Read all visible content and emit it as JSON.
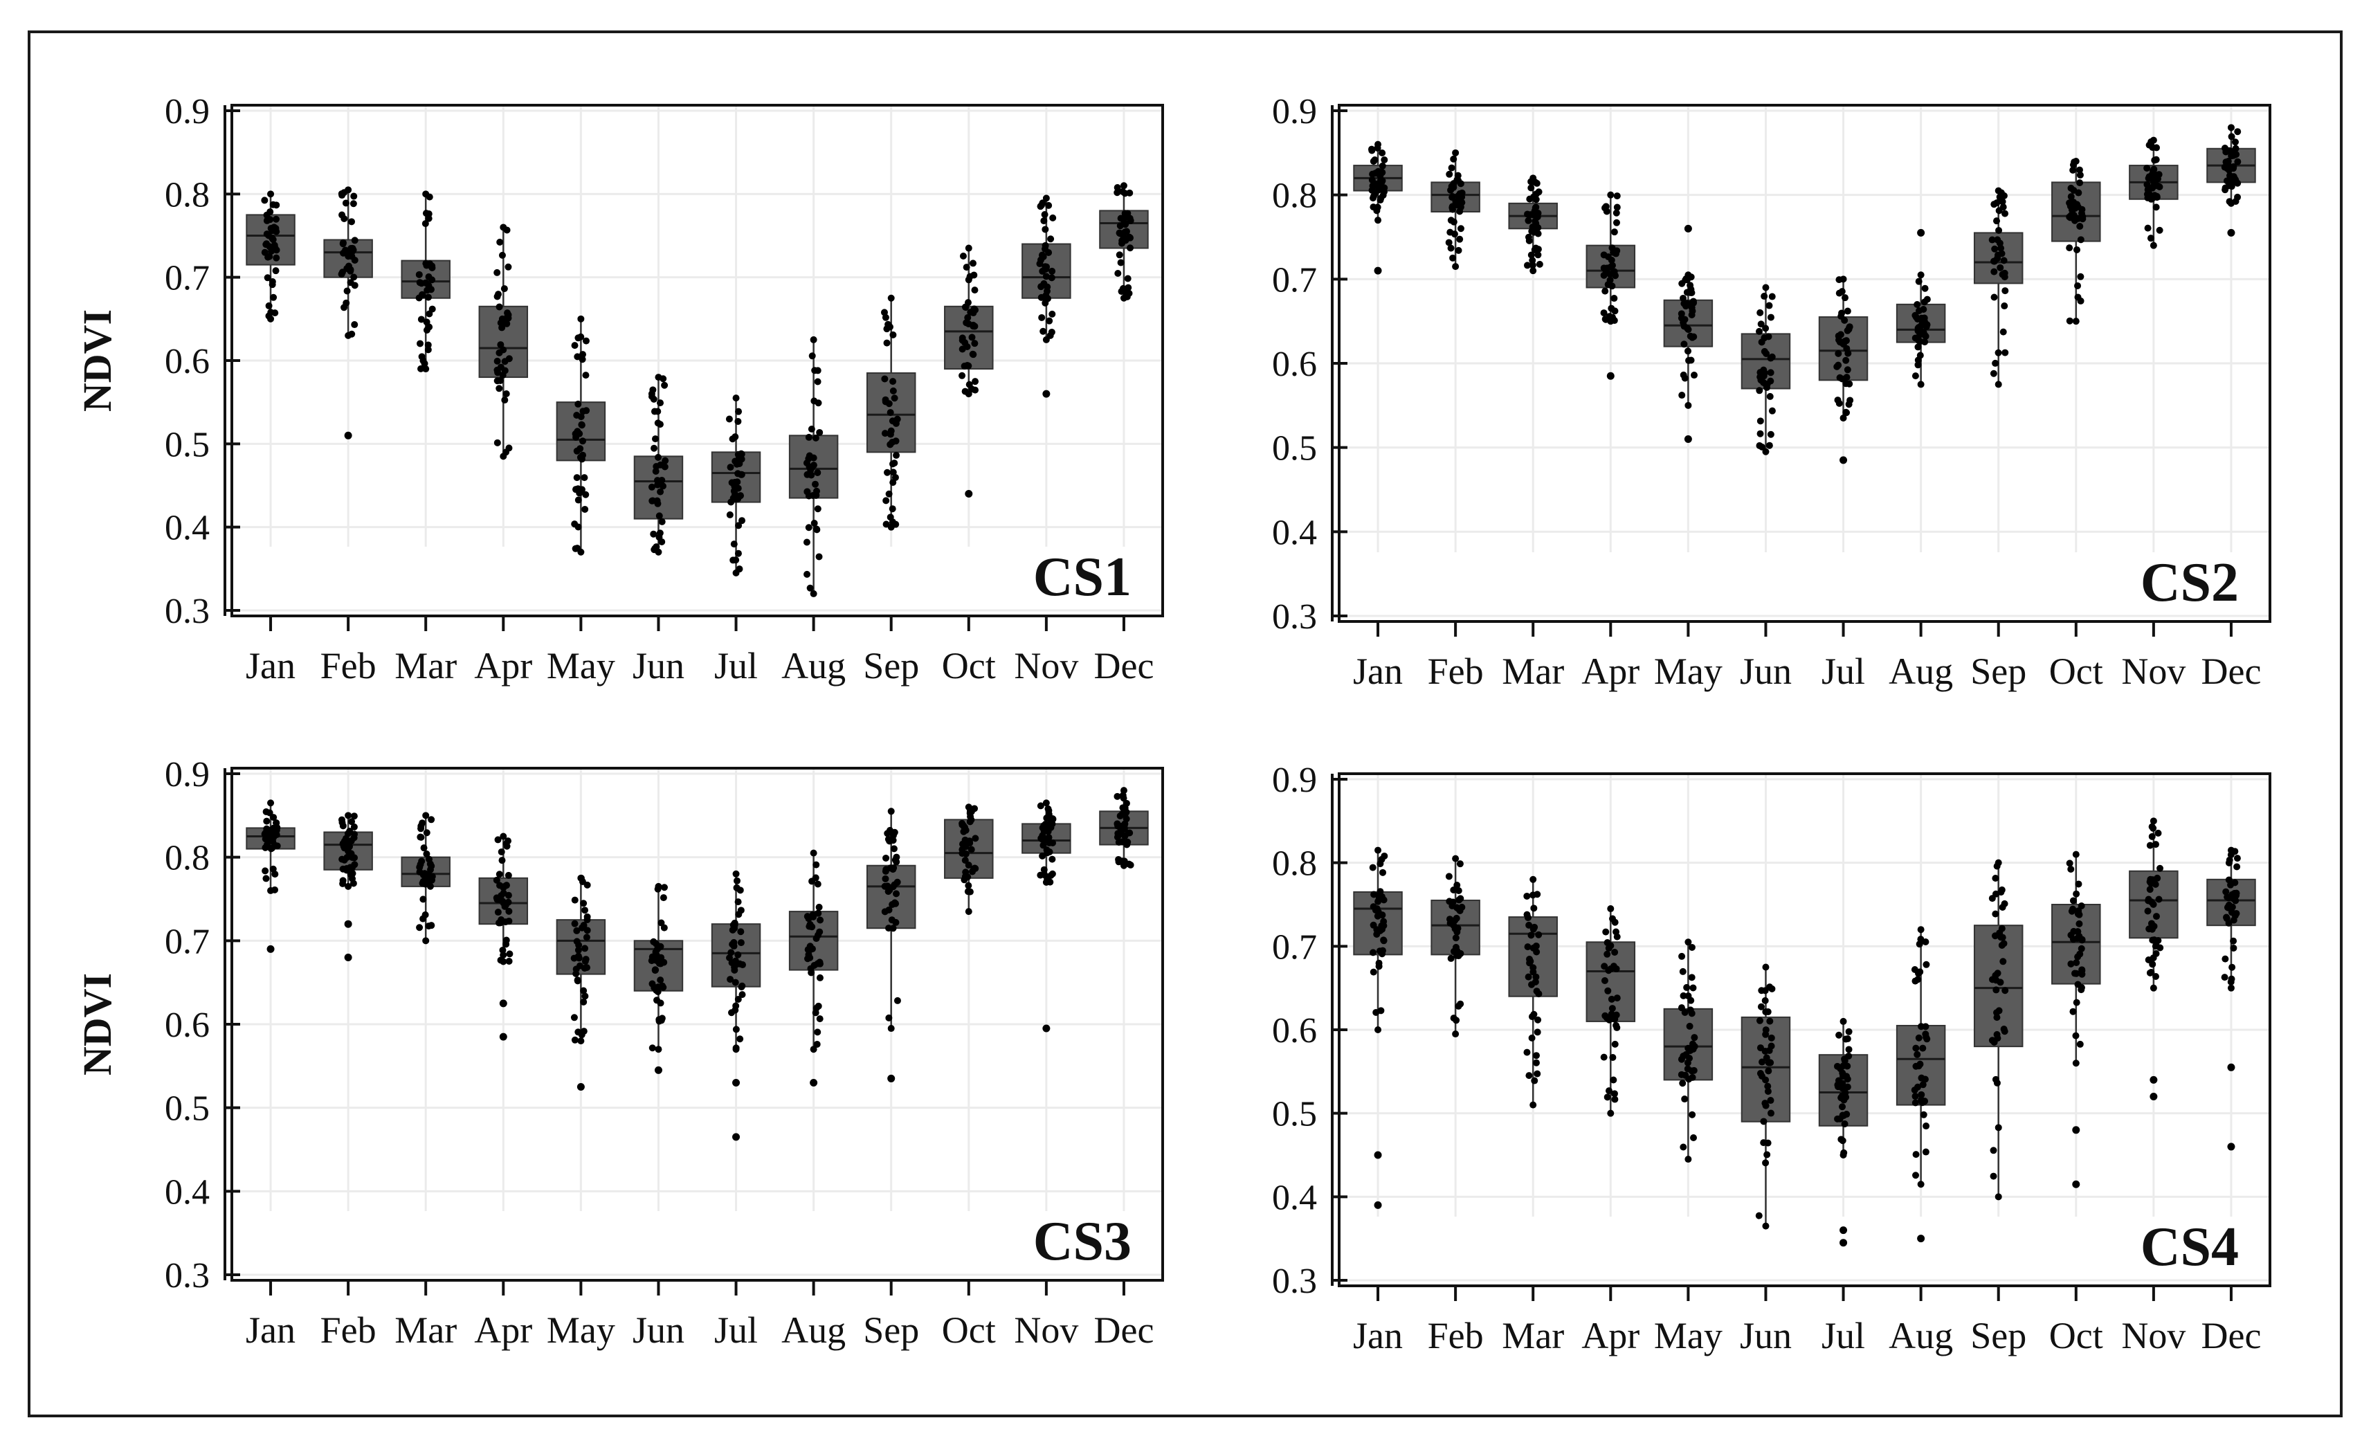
{
  "figure": {
    "months": [
      "Jan",
      "Feb",
      "Mar",
      "Apr",
      "May",
      "Jun",
      "Jul",
      "Aug",
      "Sep",
      "Oct",
      "Nov",
      "Dec"
    ],
    "colors": {
      "box": "#5b5b5b",
      "point": "#000000",
      "grid": "#ebebeb",
      "axis": "#111111"
    }
  },
  "chart_data": [
    {
      "type": "box",
      "title": "CS1",
      "ylabel": "NDVI",
      "xlabel": "",
      "ylim": [
        0.3,
        0.9
      ],
      "yticks": [
        "0.3",
        "0.4",
        "0.5",
        "0.6",
        "0.7",
        "0.8",
        "0.9"
      ],
      "categories": [
        "Jan",
        "Feb",
        "Mar",
        "Apr",
        "May",
        "Jun",
        "Jul",
        "Aug",
        "Sep",
        "Oct",
        "Nov",
        "Dec"
      ],
      "boxes": [
        {
          "min": 0.65,
          "q1": 0.715,
          "median": 0.75,
          "q3": 0.775,
          "max": 0.8,
          "outliers": []
        },
        {
          "min": 0.63,
          "q1": 0.7,
          "median": 0.73,
          "q3": 0.745,
          "max": 0.805,
          "outliers": [
            0.51
          ]
        },
        {
          "min": 0.59,
          "q1": 0.675,
          "median": 0.695,
          "q3": 0.72,
          "max": 0.8,
          "outliers": []
        },
        {
          "min": 0.485,
          "q1": 0.58,
          "median": 0.615,
          "q3": 0.665,
          "max": 0.76,
          "outliers": []
        },
        {
          "min": 0.37,
          "q1": 0.48,
          "median": 0.505,
          "q3": 0.55,
          "max": 0.65,
          "outliers": []
        },
        {
          "min": 0.37,
          "q1": 0.41,
          "median": 0.455,
          "q3": 0.485,
          "max": 0.58,
          "outliers": []
        },
        {
          "min": 0.345,
          "q1": 0.43,
          "median": 0.465,
          "q3": 0.49,
          "max": 0.555,
          "outliers": []
        },
        {
          "min": 0.32,
          "q1": 0.435,
          "median": 0.47,
          "q3": 0.51,
          "max": 0.625,
          "outliers": []
        },
        {
          "min": 0.4,
          "q1": 0.49,
          "median": 0.535,
          "q3": 0.585,
          "max": 0.675,
          "outliers": []
        },
        {
          "min": 0.56,
          "q1": 0.59,
          "median": 0.635,
          "q3": 0.665,
          "max": 0.735,
          "outliers": [
            0.44
          ]
        },
        {
          "min": 0.625,
          "q1": 0.675,
          "median": 0.7,
          "q3": 0.74,
          "max": 0.795,
          "outliers": [
            0.56
          ]
        },
        {
          "min": 0.675,
          "q1": 0.735,
          "median": 0.765,
          "q3": 0.78,
          "max": 0.81,
          "outliers": []
        }
      ]
    },
    {
      "type": "box",
      "title": "CS2",
      "ylabel": "",
      "xlabel": "",
      "ylim": [
        0.3,
        0.9
      ],
      "yticks": [
        "0.3",
        "0.4",
        "0.5",
        "0.6",
        "0.7",
        "0.8",
        "0.9"
      ],
      "categories": [
        "Jan",
        "Feb",
        "Mar",
        "Apr",
        "May",
        "Jun",
        "Jul",
        "Aug",
        "Sep",
        "Oct",
        "Nov",
        "Dec"
      ],
      "boxes": [
        {
          "min": 0.77,
          "q1": 0.805,
          "median": 0.82,
          "q3": 0.835,
          "max": 0.86,
          "outliers": [
            0.71
          ]
        },
        {
          "min": 0.715,
          "q1": 0.78,
          "median": 0.8,
          "q3": 0.815,
          "max": 0.85,
          "outliers": []
        },
        {
          "min": 0.71,
          "q1": 0.76,
          "median": 0.775,
          "q3": 0.79,
          "max": 0.82,
          "outliers": []
        },
        {
          "min": 0.65,
          "q1": 0.69,
          "median": 0.71,
          "q3": 0.74,
          "max": 0.8,
          "outliers": [
            0.585
          ]
        },
        {
          "min": 0.55,
          "q1": 0.62,
          "median": 0.645,
          "q3": 0.675,
          "max": 0.705,
          "outliers": [
            0.51,
            0.76
          ]
        },
        {
          "min": 0.495,
          "q1": 0.57,
          "median": 0.605,
          "q3": 0.635,
          "max": 0.69,
          "outliers": []
        },
        {
          "min": 0.535,
          "q1": 0.58,
          "median": 0.615,
          "q3": 0.655,
          "max": 0.7,
          "outliers": [
            0.485
          ]
        },
        {
          "min": 0.575,
          "q1": 0.625,
          "median": 0.64,
          "q3": 0.67,
          "max": 0.705,
          "outliers": [
            0.755
          ]
        },
        {
          "min": 0.575,
          "q1": 0.695,
          "median": 0.72,
          "q3": 0.755,
          "max": 0.805,
          "outliers": []
        },
        {
          "min": 0.65,
          "q1": 0.745,
          "median": 0.775,
          "q3": 0.815,
          "max": 0.84,
          "outliers": []
        },
        {
          "min": 0.74,
          "q1": 0.795,
          "median": 0.815,
          "q3": 0.835,
          "max": 0.865,
          "outliers": []
        },
        {
          "min": 0.79,
          "q1": 0.815,
          "median": 0.835,
          "q3": 0.855,
          "max": 0.88,
          "outliers": [
            0.755
          ]
        }
      ]
    },
    {
      "type": "box",
      "title": "CS3",
      "ylabel": "NDVI",
      "xlabel": "",
      "ylim": [
        0.3,
        0.9
      ],
      "yticks": [
        "0.3",
        "0.4",
        "0.5",
        "0.6",
        "0.7",
        "0.8",
        "0.9"
      ],
      "categories": [
        "Jan",
        "Feb",
        "Mar",
        "Apr",
        "May",
        "Jun",
        "Jul",
        "Aug",
        "Sep",
        "Oct",
        "Nov",
        "Dec"
      ],
      "boxes": [
        {
          "min": 0.76,
          "q1": 0.81,
          "median": 0.825,
          "q3": 0.835,
          "max": 0.865,
          "outliers": [
            0.69
          ]
        },
        {
          "min": 0.765,
          "q1": 0.785,
          "median": 0.815,
          "q3": 0.83,
          "max": 0.85,
          "outliers": [
            0.68,
            0.72
          ]
        },
        {
          "min": 0.7,
          "q1": 0.765,
          "median": 0.78,
          "q3": 0.8,
          "max": 0.85,
          "outliers": []
        },
        {
          "min": 0.675,
          "q1": 0.72,
          "median": 0.745,
          "q3": 0.775,
          "max": 0.825,
          "outliers": [
            0.625,
            0.585
          ]
        },
        {
          "min": 0.58,
          "q1": 0.66,
          "median": 0.7,
          "q3": 0.725,
          "max": 0.775,
          "outliers": [
            0.525
          ]
        },
        {
          "min": 0.57,
          "q1": 0.64,
          "median": 0.69,
          "q3": 0.7,
          "max": 0.765,
          "outliers": [
            0.545
          ]
        },
        {
          "min": 0.57,
          "q1": 0.645,
          "median": 0.685,
          "q3": 0.72,
          "max": 0.78,
          "outliers": [
            0.53,
            0.465
          ]
        },
        {
          "min": 0.57,
          "q1": 0.665,
          "median": 0.705,
          "q3": 0.735,
          "max": 0.805,
          "outliers": [
            0.53
          ]
        },
        {
          "min": 0.595,
          "q1": 0.715,
          "median": 0.765,
          "q3": 0.79,
          "max": 0.855,
          "outliers": [
            0.535
          ]
        },
        {
          "min": 0.735,
          "q1": 0.775,
          "median": 0.805,
          "q3": 0.845,
          "max": 0.86,
          "outliers": []
        },
        {
          "min": 0.77,
          "q1": 0.805,
          "median": 0.82,
          "q3": 0.84,
          "max": 0.865,
          "outliers": [
            0.595
          ]
        },
        {
          "min": 0.79,
          "q1": 0.815,
          "median": 0.835,
          "q3": 0.855,
          "max": 0.88,
          "outliers": []
        }
      ]
    },
    {
      "type": "box",
      "title": "CS4",
      "ylabel": "",
      "xlabel": "",
      "ylim": [
        0.3,
        0.9
      ],
      "yticks": [
        "0.3",
        "0.4",
        "0.5",
        "0.6",
        "0.7",
        "0.8",
        "0.9"
      ],
      "categories": [
        "Jan",
        "Feb",
        "Mar",
        "Apr",
        "May",
        "Jun",
        "Jul",
        "Aug",
        "Sep",
        "Oct",
        "Nov",
        "Dec"
      ],
      "boxes": [
        {
          "min": 0.6,
          "q1": 0.69,
          "median": 0.745,
          "q3": 0.765,
          "max": 0.815,
          "outliers": [
            0.45,
            0.39
          ]
        },
        {
          "min": 0.595,
          "q1": 0.69,
          "median": 0.725,
          "q3": 0.755,
          "max": 0.805,
          "outliers": []
        },
        {
          "min": 0.51,
          "q1": 0.64,
          "median": 0.715,
          "q3": 0.735,
          "max": 0.78,
          "outliers": []
        },
        {
          "min": 0.5,
          "q1": 0.61,
          "median": 0.67,
          "q3": 0.705,
          "max": 0.745,
          "outliers": []
        },
        {
          "min": 0.445,
          "q1": 0.54,
          "median": 0.58,
          "q3": 0.625,
          "max": 0.705,
          "outliers": []
        },
        {
          "min": 0.365,
          "q1": 0.49,
          "median": 0.555,
          "q3": 0.615,
          "max": 0.675,
          "outliers": []
        },
        {
          "min": 0.45,
          "q1": 0.485,
          "median": 0.525,
          "q3": 0.57,
          "max": 0.61,
          "outliers": [
            0.345,
            0.36
          ]
        },
        {
          "min": 0.415,
          "q1": 0.51,
          "median": 0.565,
          "q3": 0.605,
          "max": 0.72,
          "outliers": [
            0.35
          ]
        },
        {
          "min": 0.4,
          "q1": 0.58,
          "median": 0.65,
          "q3": 0.725,
          "max": 0.8,
          "outliers": []
        },
        {
          "min": 0.56,
          "q1": 0.655,
          "median": 0.705,
          "q3": 0.75,
          "max": 0.81,
          "outliers": [
            0.48,
            0.415
          ]
        },
        {
          "min": 0.65,
          "q1": 0.71,
          "median": 0.755,
          "q3": 0.79,
          "max": 0.85,
          "outliers": [
            0.52,
            0.54
          ]
        },
        {
          "min": 0.65,
          "q1": 0.725,
          "median": 0.755,
          "q3": 0.78,
          "max": 0.815,
          "outliers": [
            0.555,
            0.46
          ]
        }
      ]
    }
  ]
}
